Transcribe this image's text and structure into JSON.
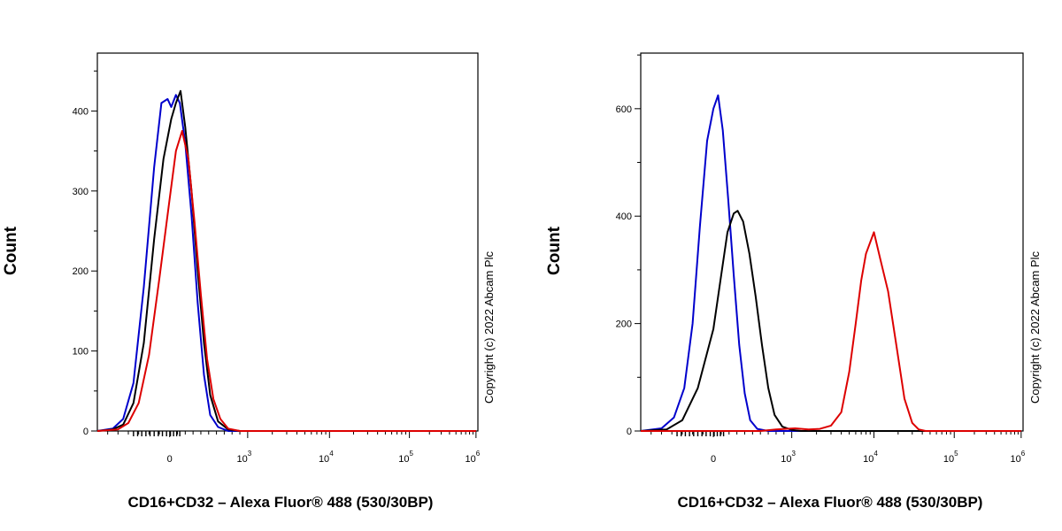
{
  "chart_data": [
    {
      "type": "line",
      "ylabel": "Count",
      "xlabel": "CD16+CD32 – Alexa Fluor® 488 (530/30BP)",
      "copyright": "Copyright (c) 2022 Abcam Plc",
      "ylim": [
        0,
        470
      ],
      "y_ticks": [
        0,
        100,
        200,
        300,
        400
      ],
      "x_scale": "biexponential",
      "x_ticks": [
        {
          "base": "0",
          "exp": ""
        },
        {
          "base": "10",
          "exp": "3"
        },
        {
          "base": "10",
          "exp": "4"
        },
        {
          "base": "10",
          "exp": "5"
        },
        {
          "base": "10",
          "exp": "6"
        }
      ],
      "series": [
        {
          "color": "#0000cc",
          "points": [
            [
              -700,
              0
            ],
            [
              -550,
              3
            ],
            [
              -450,
              15
            ],
            [
              -350,
              60
            ],
            [
              -250,
              180
            ],
            [
              -150,
              330
            ],
            [
              -80,
              410
            ],
            [
              -20,
              415
            ],
            [
              20,
              405
            ],
            [
              80,
              420
            ],
            [
              130,
              410
            ],
            [
              200,
              360
            ],
            [
              280,
              270
            ],
            [
              360,
              160
            ],
            [
              440,
              70
            ],
            [
              520,
              20
            ],
            [
              620,
              5
            ],
            [
              750,
              0
            ],
            [
              1000000,
              0
            ]
          ]
        },
        {
          "color": "#000000",
          "points": [
            [
              -700,
              0
            ],
            [
              -550,
              2
            ],
            [
              -450,
              8
            ],
            [
              -350,
              35
            ],
            [
              -250,
              110
            ],
            [
              -150,
              240
            ],
            [
              -60,
              340
            ],
            [
              20,
              390
            ],
            [
              80,
              410
            ],
            [
              140,
              425
            ],
            [
              200,
              380
            ],
            [
              280,
              300
            ],
            [
              360,
              200
            ],
            [
              440,
              110
            ],
            [
              520,
              45
            ],
            [
              620,
              12
            ],
            [
              750,
              2
            ],
            [
              900,
              0
            ],
            [
              1000000,
              0
            ]
          ]
        },
        {
          "color": "#dd0000",
          "points": [
            [
              -700,
              0
            ],
            [
              -500,
              2
            ],
            [
              -400,
              10
            ],
            [
              -300,
              35
            ],
            [
              -200,
              95
            ],
            [
              -100,
              190
            ],
            [
              0,
              290
            ],
            [
              80,
              350
            ],
            [
              160,
              375
            ],
            [
              240,
              340
            ],
            [
              320,
              260
            ],
            [
              400,
              170
            ],
            [
              480,
              90
            ],
            [
              560,
              40
            ],
            [
              650,
              15
            ],
            [
              750,
              3
            ],
            [
              900,
              0
            ],
            [
              1000000,
              0
            ]
          ]
        }
      ]
    },
    {
      "type": "line",
      "ylabel": "Count",
      "xlabel": "CD16+CD32 – Alexa Fluor® 488 (530/30BP)",
      "copyright": "Copyright (c) 2022 Abcam Plc",
      "ylim": [
        0,
        700
      ],
      "y_ticks": [
        0,
        200,
        400,
        600
      ],
      "x_scale": "biexponential",
      "x_ticks": [
        {
          "base": "0",
          "exp": ""
        },
        {
          "base": "10",
          "exp": "3"
        },
        {
          "base": "10",
          "exp": "4"
        },
        {
          "base": "10",
          "exp": "5"
        },
        {
          "base": "10",
          "exp": "6"
        }
      ],
      "series": [
        {
          "color": "#0000cc",
          "points": [
            [
              -700,
              0
            ],
            [
              -500,
              5
            ],
            [
              -380,
              25
            ],
            [
              -280,
              80
            ],
            [
              -200,
              200
            ],
            [
              -130,
              380
            ],
            [
              -60,
              540
            ],
            [
              0,
              600
            ],
            [
              60,
              625
            ],
            [
              120,
              560
            ],
            [
              190,
              430
            ],
            [
              260,
              290
            ],
            [
              330,
              160
            ],
            [
              400,
              70
            ],
            [
              470,
              20
            ],
            [
              560,
              4
            ],
            [
              700,
              0
            ],
            [
              1000000,
              0
            ]
          ]
        },
        {
          "color": "#000000",
          "points": [
            [
              -700,
              0
            ],
            [
              -450,
              3
            ],
            [
              -300,
              20
            ],
            [
              -150,
              80
            ],
            [
              0,
              190
            ],
            [
              100,
              290
            ],
            [
              180,
              370
            ],
            [
              260,
              405
            ],
            [
              310,
              410
            ],
            [
              380,
              390
            ],
            [
              460,
              330
            ],
            [
              540,
              250
            ],
            [
              620,
              160
            ],
            [
              700,
              80
            ],
            [
              780,
              30
            ],
            [
              880,
              8
            ],
            [
              1000,
              2
            ],
            [
              1300,
              0
            ],
            [
              1000000,
              0
            ]
          ]
        },
        {
          "color": "#dd0000",
          "points": [
            [
              -700,
              0
            ],
            [
              600,
              0
            ],
            [
              800,
              3
            ],
            [
              1100,
              5
            ],
            [
              1600,
              3
            ],
            [
              2200,
              4
            ],
            [
              3000,
              10
            ],
            [
              4000,
              35
            ],
            [
              5000,
              110
            ],
            [
              6000,
              200
            ],
            [
              7000,
              280
            ],
            [
              8000,
              330
            ],
            [
              10000,
              370
            ],
            [
              12000,
              320
            ],
            [
              15000,
              260
            ],
            [
              19000,
              160
            ],
            [
              24000,
              60
            ],
            [
              30000,
              15
            ],
            [
              36000,
              3
            ],
            [
              44000,
              0
            ],
            [
              1000000,
              0
            ]
          ]
        }
      ]
    }
  ]
}
